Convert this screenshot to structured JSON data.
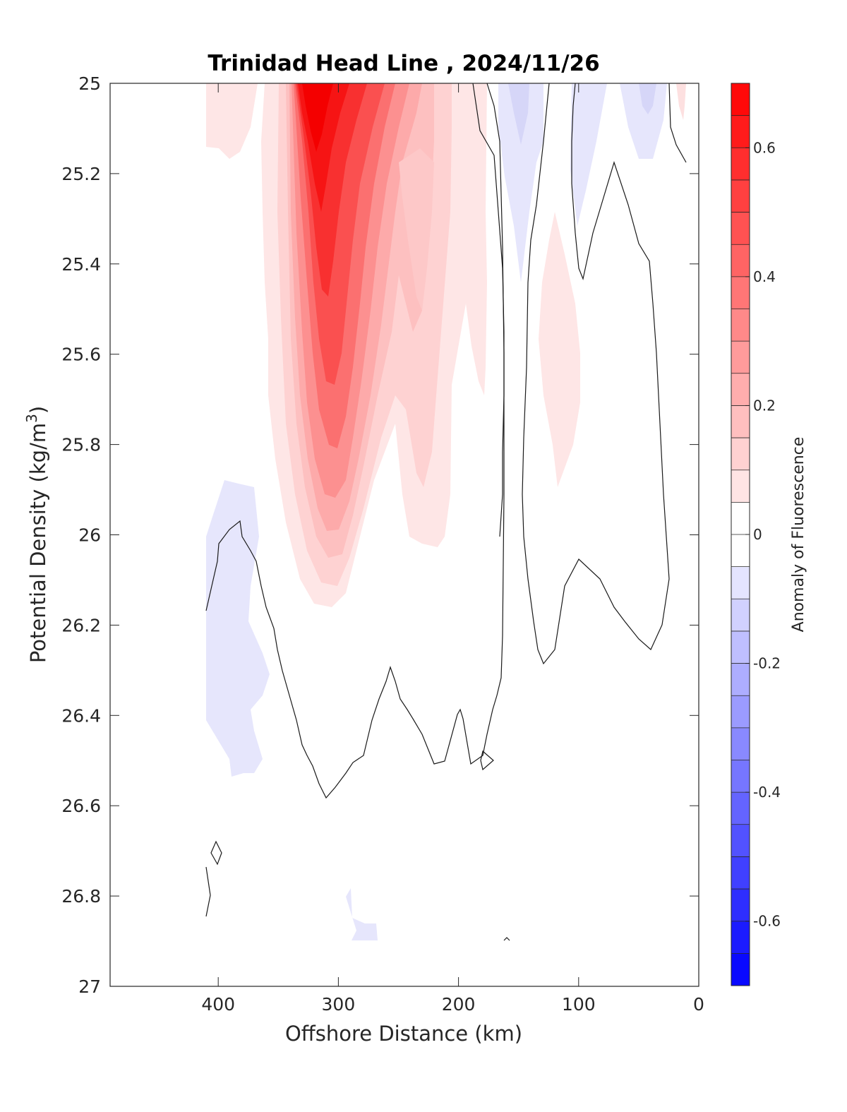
{
  "chart_data": {
    "type": "contour",
    "title": "Trinidad Head Line , 2024/11/26",
    "xlabel": "Offshore Distance (km)",
    "ylabel_main": "Potential Density (kg/m",
    "ylabel_sup": "3",
    "ylabel_close": ")",
    "xlim": [
      490,
      0
    ],
    "ylim": [
      27,
      25
    ],
    "x_reversed": true,
    "y_reversed": true,
    "x_ticks": [
      400,
      300,
      200,
      100,
      0
    ],
    "y_ticks": [
      "25",
      "25.2",
      "25.4",
      "25.6",
      "25.8",
      "26",
      "26.2",
      "26.4",
      "26.6",
      "26.8",
      "27"
    ],
    "colorbar": {
      "label": "Anomaly of Fluorescence",
      "range": [
        -0.7,
        0.7
      ],
      "level_step": 0.05,
      "ticks": [
        "0.6",
        "0.4",
        "0.2",
        "0",
        "-0.2",
        "-0.4",
        "-0.6"
      ],
      "tick_values": [
        0.6,
        0.4,
        0.2,
        0,
        -0.2,
        -0.4,
        -0.6
      ],
      "colormap": "blue-white-red",
      "positive_color": "#ff0000",
      "negative_color": "#0000ff"
    },
    "features": [
      {
        "kind": "anomaly_core",
        "sign": "positive",
        "peak": 0.7,
        "x_center_km": 310,
        "density_range": [
          25.0,
          26.1
        ]
      },
      {
        "kind": "anomaly_lobe",
        "sign": "positive",
        "peak": 0.25,
        "x_center_km": 225,
        "density_range": [
          25.0,
          26.0
        ]
      },
      {
        "kind": "anomaly_lobe",
        "sign": "positive",
        "peak": 0.1,
        "x_center_km": 110,
        "density_range": [
          25.3,
          25.9
        ]
      },
      {
        "kind": "anomaly_patch",
        "sign": "negative",
        "peak": -0.1,
        "x_center_km": 380,
        "density_range": [
          25.9,
          26.55
        ]
      },
      {
        "kind": "anomaly_patch",
        "sign": "negative",
        "peak": -0.1,
        "x_center_km": 150,
        "density_range": [
          25.0,
          25.4
        ]
      },
      {
        "kind": "anomaly_patch",
        "sign": "negative",
        "peak": -0.1,
        "x_center_km": 50,
        "density_range": [
          25.0,
          25.15
        ]
      },
      {
        "kind": "zero_contour",
        "description": "0 contour line bounding positive region"
      }
    ]
  }
}
